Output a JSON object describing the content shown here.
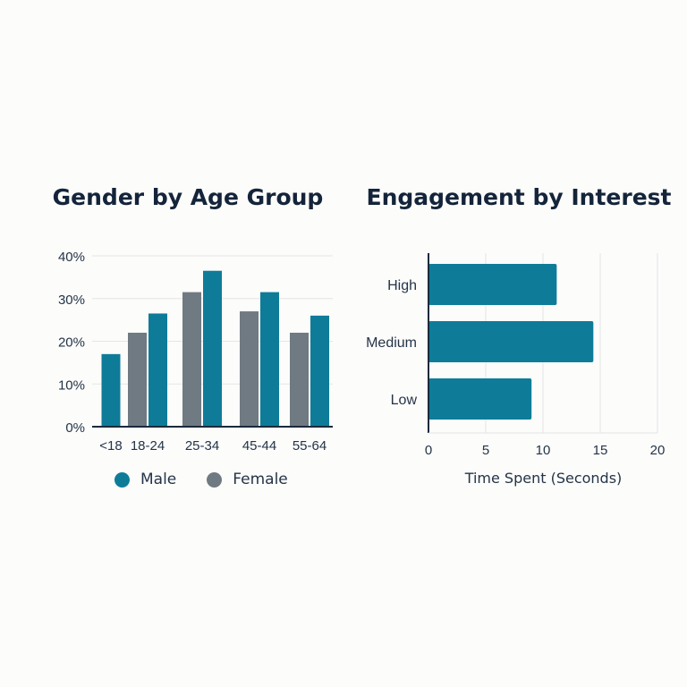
{
  "colors": {
    "male": "#0e7c99",
    "female": "#6f7a82",
    "engagement": "#0e7c99",
    "axis": "#1b2a3a",
    "grid": "#e3e5e7"
  },
  "chart_data": [
    {
      "type": "bar",
      "title": "Gender by Age Group",
      "categories": [
        "<18",
        "18-24",
        "25-34",
        "45-44",
        "55-64"
      ],
      "series": [
        {
          "name": "Male",
          "values": [
            17,
            26.5,
            36.5,
            31.5,
            26
          ]
        },
        {
          "name": "Female",
          "values": [
            null,
            22,
            31.5,
            27,
            22
          ]
        }
      ],
      "ylim": [
        0,
        40
      ],
      "yticks": [
        "0%",
        "10%",
        "20%",
        "30%",
        "40%"
      ],
      "ytick_values": [
        0,
        10,
        20,
        30,
        40
      ],
      "grid": true,
      "legend_position": "bottom"
    },
    {
      "type": "bar",
      "orientation": "horizontal",
      "title": "Engagement by Interest",
      "categories": [
        "High",
        "Medium",
        "Low"
      ],
      "values": [
        11.2,
        14.4,
        9
      ],
      "xlabel": "Time Spent (Seconds)",
      "xlim": [
        0,
        20
      ],
      "xticks": [
        0,
        5,
        10,
        15,
        20
      ],
      "grid": true
    }
  ]
}
